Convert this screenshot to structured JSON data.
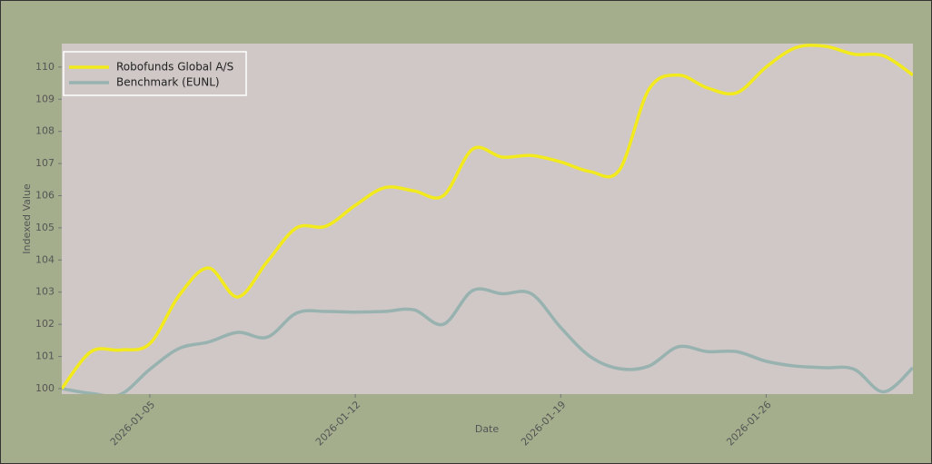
{
  "chart_data": {
    "type": "line",
    "x_label": "Date",
    "y_label": "Indexed Value",
    "x": [
      "2026-01-02",
      "2026-01-03",
      "2026-01-04",
      "2026-01-05",
      "2026-01-06",
      "2026-01-07",
      "2026-01-08",
      "2026-01-09",
      "2026-01-10",
      "2026-01-11",
      "2026-01-12",
      "2026-01-13",
      "2026-01-14",
      "2026-01-15",
      "2026-01-16",
      "2026-01-17",
      "2026-01-18",
      "2026-01-19",
      "2026-01-20",
      "2026-01-21",
      "2026-01-22",
      "2026-01-23",
      "2026-01-24",
      "2026-01-25",
      "2026-01-26",
      "2026-01-27",
      "2026-01-28",
      "2026-01-29",
      "2026-01-30",
      "2026-01-31"
    ],
    "series": [
      {
        "name": "Robofunds Global A/S",
        "color": "#f2ea1c",
        "values": [
          100.0,
          101.15,
          101.2,
          101.4,
          102.9,
          103.75,
          102.85,
          103.95,
          105.0,
          105.05,
          105.7,
          106.25,
          106.15,
          106.0,
          107.45,
          107.2,
          107.25,
          107.05,
          106.75,
          106.8,
          109.3,
          109.75,
          109.35,
          109.2,
          110.0,
          110.6,
          110.65,
          110.4,
          110.35,
          109.75
        ]
      },
      {
        "name": "Benchmark (EUNL)",
        "color": "#98b2b0",
        "values": [
          100.0,
          99.85,
          99.82,
          100.6,
          101.25,
          101.45,
          101.75,
          101.6,
          102.35,
          102.4,
          102.38,
          102.4,
          102.45,
          102.0,
          103.05,
          102.95,
          102.95,
          101.9,
          101.0,
          100.62,
          100.7,
          101.3,
          101.15,
          101.15,
          100.85,
          100.7,
          100.65,
          100.6,
          99.9,
          100.65
        ]
      }
    ],
    "xlim": [
      "2026-01-02",
      "2026-01-31"
    ],
    "xticks": [
      "2026-01-05",
      "2026-01-12",
      "2026-01-19",
      "2026-01-26"
    ],
    "ylim": [
      99.83,
      110.73
    ],
    "yticks": [
      100,
      101,
      102,
      103,
      104,
      105,
      106,
      107,
      108,
      109,
      110
    ],
    "grid": false,
    "legend": "upper left"
  }
}
